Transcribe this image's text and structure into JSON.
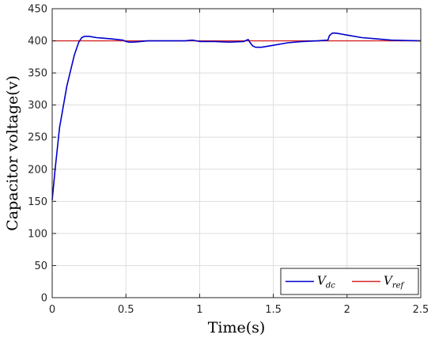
{
  "chart_data": {
    "type": "line",
    "xlabel": "Time(s)",
    "ylabel": "Capacitor voltage(v)",
    "xlim": [
      0,
      2.5
    ],
    "ylim": [
      0,
      450
    ],
    "xticks": [
      "0",
      "0.5",
      "1",
      "1.5",
      "2",
      "2.5"
    ],
    "yticks": [
      "0",
      "50",
      "100",
      "150",
      "200",
      "250",
      "300",
      "350",
      "400",
      "450"
    ],
    "grid": true,
    "legend": "bottom-right",
    "series": [
      {
        "name": "V",
        "subscript": "dc",
        "color": "#0000cc",
        "x": [
          0,
          0.02,
          0.05,
          0.1,
          0.15,
          0.18,
          0.2,
          0.22,
          0.25,
          0.3,
          0.4,
          0.48,
          0.5,
          0.52,
          0.55,
          0.6,
          0.65,
          0.7,
          0.8,
          0.9,
          0.95,
          1.0,
          1.1,
          1.2,
          1.3,
          1.33,
          1.34,
          1.36,
          1.38,
          1.42,
          1.5,
          1.6,
          1.7,
          1.8,
          1.87,
          1.88,
          1.9,
          1.92,
          1.95,
          2.0,
          2.1,
          2.2,
          2.3,
          2.5
        ],
        "y": [
          152,
          200,
          265,
          330,
          378,
          398,
          405,
          407,
          407,
          405,
          403,
          401,
          399,
          398,
          398,
          399,
          400,
          400,
          400,
          400,
          401,
          399,
          399,
          398,
          399,
          402,
          398,
          392,
          390,
          390,
          393,
          397,
          399,
          400,
          401,
          408,
          412,
          412,
          411,
          409,
          405,
          403,
          401,
          400
        ]
      },
      {
        "name": "V",
        "subscript": "ref",
        "color": "#d62728",
        "x": [
          0,
          2.5
        ],
        "y": [
          400,
          400
        ]
      }
    ]
  }
}
